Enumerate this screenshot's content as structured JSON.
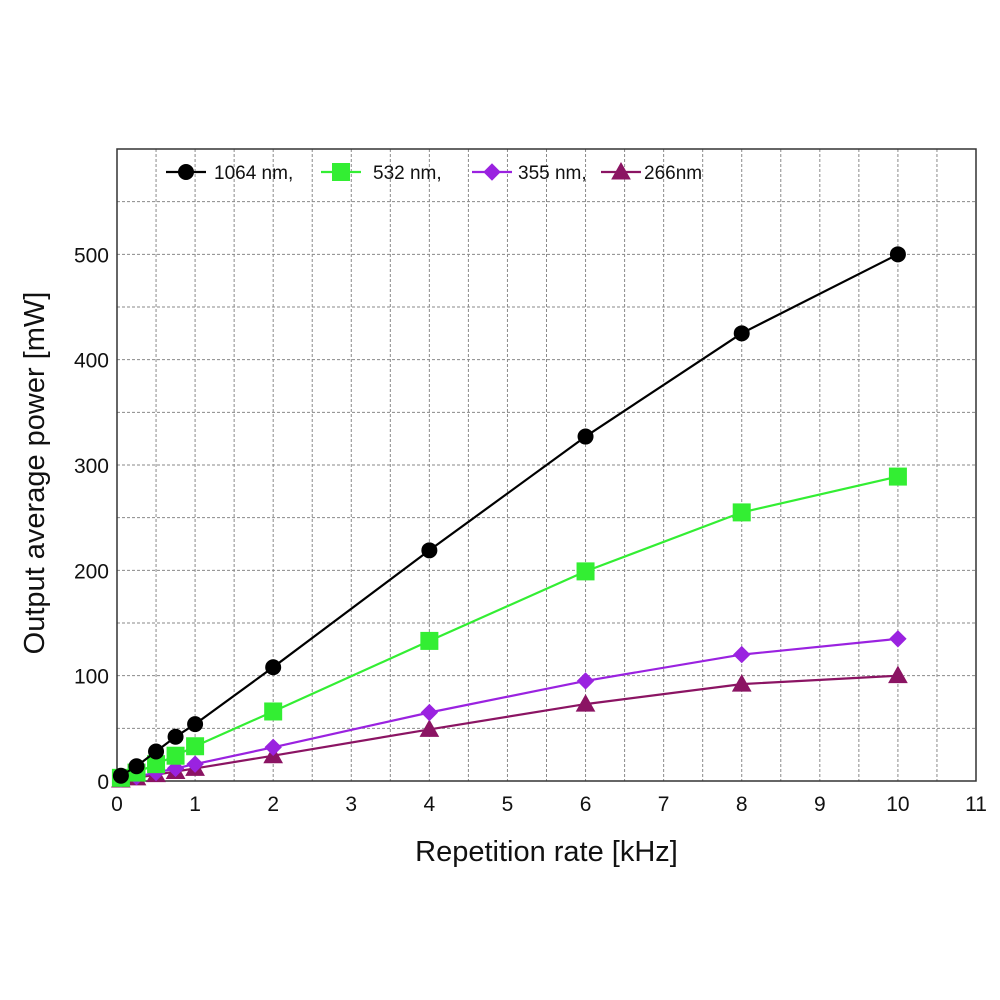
{
  "chart_data": {
    "type": "line",
    "title": "",
    "xlabel": "Repetition rate [kHz]",
    "ylabel": "Output average power [mW]",
    "xlim": [
      0,
      11
    ],
    "ylim": [
      0,
      600
    ],
    "xticks": [
      0,
      1,
      2,
      3,
      4,
      5,
      6,
      7,
      8,
      9,
      10,
      11
    ],
    "yticks": [
      0,
      100,
      200,
      300,
      400,
      500
    ],
    "x_minor_gridlines": [
      0.5,
      1.5,
      2.5,
      3.5,
      4.5,
      5.5,
      6.5,
      7.5,
      8.5,
      9.5,
      10.5
    ],
    "y_minor_gridlines": [
      50,
      150,
      250,
      350,
      450,
      550
    ],
    "grid": true,
    "legend_position": "top",
    "series": [
      {
        "name": "1064 nm,",
        "color": "#000000",
        "marker": "circle",
        "x": [
          0.05,
          0.25,
          0.5,
          0.75,
          1,
          2,
          4,
          6,
          8,
          10
        ],
        "y": [
          5,
          14,
          28,
          42,
          54,
          108,
          219,
          327,
          425,
          500
        ]
      },
      {
        "name": "532 nm,",
        "color": "#33ee33",
        "marker": "square",
        "x": [
          0.05,
          0.25,
          0.5,
          0.75,
          1,
          2,
          4,
          6,
          8,
          10
        ],
        "y": [
          3,
          8,
          16,
          24,
          33,
          66,
          133,
          199,
          255,
          289
        ]
      },
      {
        "name": "355 nm,",
        "color": "#9a22e0",
        "marker": "diamond",
        "x": [
          0.05,
          0.25,
          0.5,
          0.75,
          1,
          2,
          4,
          6,
          8,
          10
        ],
        "y": [
          2,
          4,
          8,
          12,
          16,
          32,
          65,
          95,
          120,
          135
        ]
      },
      {
        "name": "266nm",
        "color": "#8b1463",
        "marker": "triangle",
        "x": [
          0.05,
          0.25,
          0.5,
          0.75,
          1,
          2,
          4,
          6,
          8,
          10
        ],
        "y": [
          1,
          3,
          6,
          9,
          12,
          24,
          49,
          73,
          92,
          100
        ]
      }
    ]
  }
}
